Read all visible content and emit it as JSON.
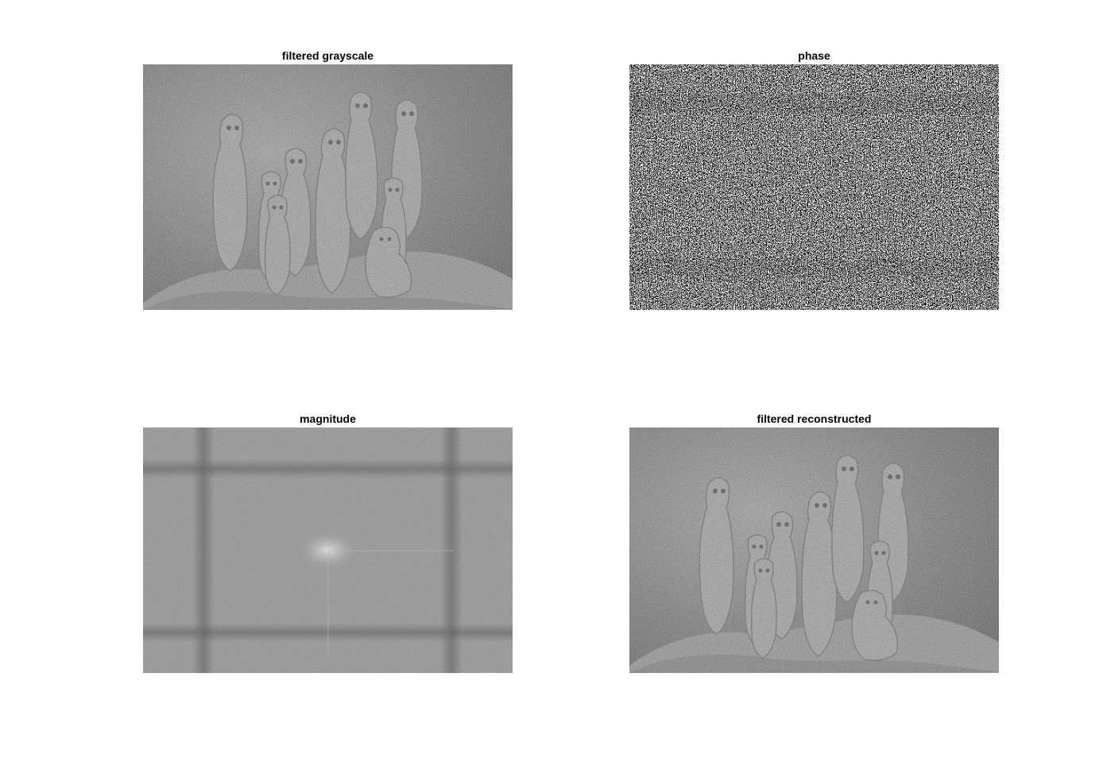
{
  "figure": {
    "panels": [
      {
        "title": "filtered grayscale"
      },
      {
        "title": "phase"
      },
      {
        "title": "magnitude"
      },
      {
        "title": "filtered reconstructed"
      }
    ]
  }
}
